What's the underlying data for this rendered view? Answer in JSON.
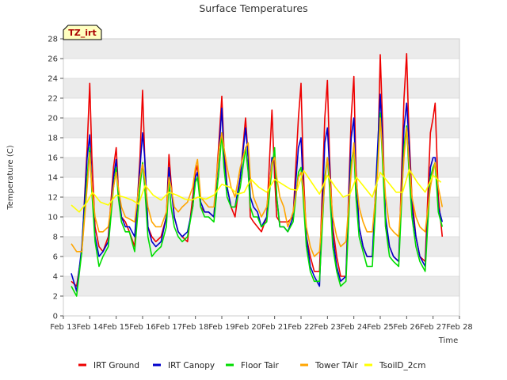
{
  "chart_data": {
    "type": "line",
    "title": "Surface Temperatures",
    "xlabel": "Time",
    "ylabel": "Temperature (C)",
    "badge": "TZ_irt",
    "ylim": [
      0,
      28
    ],
    "xlim": [
      13,
      28
    ],
    "grid": true,
    "legend_position": "bottom",
    "x_ticks": [
      {
        "v": 13,
        "label": "Feb 13"
      },
      {
        "v": 14,
        "label": "Feb 14"
      },
      {
        "v": 15,
        "label": "Feb 15"
      },
      {
        "v": 16,
        "label": "Feb 16"
      },
      {
        "v": 17,
        "label": "Feb 17"
      },
      {
        "v": 18,
        "label": "Feb 18"
      },
      {
        "v": 19,
        "label": "Feb 19"
      },
      {
        "v": 20,
        "label": "Feb 20"
      },
      {
        "v": 21,
        "label": "Feb 21"
      },
      {
        "v": 22,
        "label": "Feb 22"
      },
      {
        "v": 23,
        "label": "Feb 23"
      },
      {
        "v": 24,
        "label": "Feb 24"
      },
      {
        "v": 25,
        "label": "Feb 25"
      },
      {
        "v": 26,
        "label": "Feb 26"
      },
      {
        "v": 27,
        "label": "Feb 27"
      },
      {
        "v": 28,
        "label": "Feb 28"
      }
    ],
    "y_ticks": [
      0,
      2,
      4,
      6,
      8,
      10,
      12,
      14,
      16,
      18,
      20,
      22,
      24,
      26,
      28
    ],
    "series": [
      {
        "name": "IRT Ground",
        "color": "#ee0000",
        "x": [
          13.3,
          13.5,
          13.7,
          13.9,
          14.0,
          14.08,
          14.2,
          14.35,
          14.5,
          14.7,
          14.9,
          15.0,
          15.08,
          15.2,
          15.35,
          15.5,
          15.7,
          15.9,
          16.0,
          16.08,
          16.2,
          16.35,
          16.5,
          16.7,
          16.9,
          17.0,
          17.08,
          17.2,
          17.35,
          17.5,
          17.7,
          17.9,
          18.0,
          18.08,
          18.2,
          18.35,
          18.5,
          18.7,
          18.9,
          19.0,
          19.08,
          19.2,
          19.35,
          19.5,
          19.7,
          19.9,
          20.0,
          20.08,
          20.2,
          20.35,
          20.5,
          20.7,
          20.9,
          21.0,
          21.08,
          21.2,
          21.35,
          21.5,
          21.7,
          21.9,
          22.0,
          22.08,
          22.2,
          22.35,
          22.5,
          22.7,
          22.9,
          23.0,
          23.08,
          23.2,
          23.35,
          23.5,
          23.7,
          23.9,
          24.0,
          24.08,
          24.2,
          24.35,
          24.5,
          24.7,
          24.9,
          25.0,
          25.08,
          25.2,
          25.35,
          25.5,
          25.7,
          25.9,
          26.0,
          26.08,
          26.2,
          26.35,
          26.5,
          26.7,
          26.9,
          27.0,
          27.08,
          27.2,
          27.35
        ],
        "y": [
          3.5,
          3.0,
          6.5,
          17.0,
          23.5,
          16.0,
          9.0,
          7.0,
          6.5,
          8.0,
          15.0,
          17.0,
          13.0,
          10.0,
          9.5,
          8.5,
          7.0,
          16.0,
          22.8,
          16.0,
          9.0,
          8.0,
          7.5,
          8.0,
          10.0,
          16.3,
          13.5,
          10.0,
          8.5,
          8.0,
          7.5,
          12.0,
          14.5,
          15.2,
          11.0,
          10.5,
          10.5,
          10.0,
          18.0,
          22.2,
          17.0,
          13.0,
          11.0,
          10.0,
          14.0,
          20.0,
          16.0,
          10.0,
          9.5,
          9.0,
          8.5,
          10.0,
          20.8,
          14.0,
          10.0,
          9.5,
          9.5,
          9.5,
          10.0,
          20.0,
          23.5,
          15.0,
          8.0,
          6.0,
          4.5,
          4.5,
          20.0,
          23.8,
          16.0,
          9.0,
          6.0,
          4.0,
          4.0,
          20.0,
          24.2,
          15.0,
          9.0,
          7.0,
          6.0,
          6.0,
          15.0,
          26.4,
          20.0,
          9.0,
          7.0,
          6.0,
          5.5,
          22.0,
          26.5,
          19.0,
          12.0,
          8.0,
          6.0,
          5.5,
          18.5,
          20.0,
          21.5,
          12.0,
          8.0
        ]
      },
      {
        "name": "IRT Canopy",
        "color": "#0000cc",
        "x": [
          13.3,
          13.5,
          13.7,
          13.9,
          14.0,
          14.08,
          14.2,
          14.35,
          14.5,
          14.7,
          14.9,
          15.0,
          15.08,
          15.2,
          15.35,
          15.5,
          15.7,
          15.9,
          16.0,
          16.08,
          16.2,
          16.35,
          16.5,
          16.7,
          16.9,
          17.0,
          17.08,
          17.2,
          17.35,
          17.5,
          17.7,
          17.9,
          18.0,
          18.08,
          18.2,
          18.35,
          18.5,
          18.7,
          18.9,
          19.0,
          19.08,
          19.2,
          19.35,
          19.5,
          19.7,
          19.9,
          20.0,
          20.08,
          20.2,
          20.35,
          20.5,
          20.7,
          20.9,
          21.0,
          21.08,
          21.2,
          21.35,
          21.5,
          21.7,
          21.9,
          22.0,
          22.08,
          22.2,
          22.35,
          22.5,
          22.7,
          22.9,
          23.0,
          23.08,
          23.2,
          23.35,
          23.5,
          23.7,
          23.9,
          24.0,
          24.08,
          24.2,
          24.35,
          24.5,
          24.7,
          24.9,
          25.0,
          25.08,
          25.2,
          25.35,
          25.5,
          25.7,
          25.9,
          26.0,
          26.08,
          26.2,
          26.35,
          26.5,
          26.7,
          26.9,
          27.0,
          27.08,
          27.2,
          27.35
        ],
        "y": [
          4.3,
          2.5,
          7.0,
          16.0,
          18.3,
          13.0,
          8.0,
          6.0,
          6.5,
          7.5,
          14.0,
          15.8,
          12.5,
          10.0,
          9.0,
          9.0,
          8.0,
          15.0,
          18.5,
          16.0,
          9.0,
          7.5,
          7.0,
          7.5,
          10.0,
          15.0,
          13.0,
          10.0,
          8.5,
          8.0,
          8.5,
          11.0,
          14.0,
          14.5,
          11.5,
          10.5,
          10.5,
          10.0,
          17.0,
          21.0,
          16.0,
          13.0,
          11.0,
          11.0,
          14.0,
          19.0,
          16.0,
          12.0,
          11.0,
          10.5,
          9.0,
          10.0,
          16.0,
          16.0,
          12.0,
          9.0,
          9.0,
          8.5,
          10.0,
          17.0,
          18.0,
          13.0,
          8.0,
          5.0,
          4.0,
          3.0,
          17.5,
          19.0,
          15.0,
          8.0,
          5.0,
          3.5,
          4.0,
          18.0,
          20.0,
          14.0,
          9.0,
          7.0,
          6.0,
          6.0,
          17.0,
          22.4,
          18.0,
          10.0,
          7.0,
          6.0,
          5.5,
          19.0,
          21.5,
          18.0,
          11.0,
          8.0,
          6.0,
          5.0,
          15.0,
          16.0,
          16.0,
          11.0,
          9.5
        ]
      },
      {
        "name": "Floor Tair",
        "color": "#00dd00",
        "x": [
          13.3,
          13.5,
          13.7,
          13.9,
          14.0,
          14.08,
          14.2,
          14.35,
          14.5,
          14.7,
          14.9,
          15.0,
          15.08,
          15.2,
          15.35,
          15.5,
          15.7,
          15.9,
          16.0,
          16.08,
          16.2,
          16.35,
          16.5,
          16.7,
          16.9,
          17.0,
          17.08,
          17.2,
          17.35,
          17.5,
          17.7,
          17.9,
          18.0,
          18.08,
          18.2,
          18.35,
          18.5,
          18.7,
          18.9,
          19.0,
          19.08,
          19.2,
          19.35,
          19.5,
          19.7,
          19.9,
          20.0,
          20.08,
          20.2,
          20.35,
          20.5,
          20.7,
          20.9,
          21.0,
          21.08,
          21.2,
          21.35,
          21.5,
          21.7,
          21.9,
          22.0,
          22.08,
          22.2,
          22.35,
          22.5,
          22.7,
          22.9,
          23.0,
          23.08,
          23.2,
          23.35,
          23.5,
          23.7,
          23.9,
          24.0,
          24.08,
          24.2,
          24.35,
          24.5,
          24.7,
          24.9,
          25.0,
          25.08,
          25.2,
          25.35,
          25.5,
          25.7,
          25.9,
          26.0,
          26.08,
          26.2,
          26.35,
          26.5,
          26.7,
          26.9,
          27.0,
          27.08,
          27.2,
          27.35
        ],
        "y": [
          3.0,
          2.0,
          6.5,
          14.0,
          17.0,
          12.5,
          7.5,
          5.0,
          6.0,
          7.0,
          13.0,
          15.0,
          12.0,
          9.5,
          8.5,
          8.5,
          6.5,
          13.0,
          15.5,
          13.0,
          8.0,
          6.0,
          6.5,
          7.0,
          9.0,
          13.5,
          11.0,
          9.0,
          8.0,
          7.5,
          8.0,
          11.0,
          13.5,
          14.0,
          11.0,
          10.0,
          10.0,
          9.5,
          15.0,
          18.5,
          15.0,
          12.0,
          11.0,
          11.0,
          13.0,
          17.0,
          14.5,
          11.0,
          10.0,
          10.0,
          9.0,
          9.5,
          15.0,
          17.0,
          12.0,
          9.0,
          9.0,
          8.5,
          9.5,
          14.5,
          15.0,
          12.0,
          7.0,
          4.5,
          3.5,
          3.5,
          14.0,
          16.0,
          13.0,
          7.0,
          4.5,
          3.0,
          3.5,
          15.5,
          17.0,
          12.0,
          8.0,
          6.5,
          5.0,
          5.0,
          15.0,
          20.5,
          16.0,
          9.0,
          6.0,
          5.5,
          5.0,
          17.0,
          19.2,
          15.0,
          10.0,
          7.0,
          5.5,
          4.5,
          14.0,
          15.0,
          15.5,
          10.5,
          9.0
        ]
      },
      {
        "name": "Tower TAir",
        "color": "#ffa500",
        "x": [
          13.3,
          13.5,
          13.7,
          13.9,
          14.0,
          14.08,
          14.2,
          14.35,
          14.5,
          14.7,
          14.9,
          15.0,
          15.08,
          15.2,
          15.35,
          15.5,
          15.7,
          15.9,
          16.0,
          16.08,
          16.2,
          16.35,
          16.5,
          16.7,
          16.9,
          17.0,
          17.08,
          17.2,
          17.35,
          17.5,
          17.7,
          17.9,
          18.0,
          18.08,
          18.2,
          18.35,
          18.5,
          18.7,
          18.9,
          19.0,
          19.08,
          19.2,
          19.35,
          19.5,
          19.7,
          19.9,
          20.0,
          20.08,
          20.2,
          20.35,
          20.5,
          20.7,
          20.9,
          21.0,
          21.08,
          21.2,
          21.35,
          21.5,
          21.7,
          21.9,
          22.0,
          22.08,
          22.2,
          22.35,
          22.5,
          22.7,
          22.9,
          23.0,
          23.08,
          23.2,
          23.35,
          23.5,
          23.7,
          23.9,
          24.0,
          24.08,
          24.2,
          24.35,
          24.5,
          24.7,
          24.9,
          25.0,
          25.08,
          25.2,
          25.35,
          25.5,
          25.7,
          25.9,
          26.0,
          26.08,
          26.2,
          26.35,
          26.5,
          26.7,
          26.9,
          27.0,
          27.08,
          27.2,
          27.35
        ],
        "y": [
          7.3,
          6.5,
          6.5,
          13.0,
          16.5,
          13.0,
          10.0,
          8.5,
          8.5,
          9.0,
          13.0,
          14.5,
          13.0,
          11.0,
          10.0,
          9.8,
          9.5,
          14.0,
          15.3,
          14.0,
          11.0,
          9.5,
          9.0,
          9.0,
          10.5,
          14.0,
          13.0,
          11.0,
          10.5,
          11.0,
          11.5,
          13.0,
          15.0,
          15.8,
          12.0,
          11.5,
          11.0,
          11.0,
          17.0,
          18.5,
          17.0,
          15.0,
          13.0,
          12.0,
          15.0,
          17.0,
          17.5,
          14.0,
          12.0,
          11.0,
          10.0,
          11.0,
          15.5,
          16.0,
          14.0,
          12.0,
          11.0,
          9.0,
          10.5,
          14.0,
          14.5,
          13.0,
          9.0,
          7.0,
          6.0,
          6.5,
          13.5,
          16.0,
          14.0,
          10.0,
          8.0,
          7.0,
          7.5,
          14.5,
          17.5,
          14.0,
          11.0,
          9.5,
          8.5,
          8.5,
          14.5,
          20.0,
          17.0,
          12.0,
          9.0,
          8.5,
          8.0,
          16.0,
          19.0,
          16.0,
          12.0,
          10.0,
          9.0,
          8.5,
          13.0,
          14.5,
          15.5,
          13.0,
          11.0
        ]
      },
      {
        "name": "TsoilD_2cm",
        "color": "#ffff00",
        "x": [
          13.3,
          13.6,
          13.9,
          14.1,
          14.4,
          14.7,
          15.0,
          15.3,
          15.6,
          15.85,
          16.1,
          16.4,
          16.7,
          17.0,
          17.3,
          17.6,
          17.85,
          18.1,
          18.4,
          18.7,
          19.0,
          19.3,
          19.6,
          19.85,
          20.1,
          20.4,
          20.7,
          21.0,
          21.3,
          21.6,
          21.85,
          22.1,
          22.4,
          22.7,
          23.0,
          23.3,
          23.6,
          23.85,
          24.1,
          24.4,
          24.7,
          25.0,
          25.3,
          25.6,
          25.85,
          26.1,
          26.4,
          26.7,
          27.0,
          27.3
        ],
        "y": [
          11.2,
          10.5,
          11.5,
          12.5,
          11.5,
          11.2,
          12.2,
          12.0,
          11.7,
          11.3,
          13.2,
          12.2,
          11.7,
          12.5,
          12.2,
          11.8,
          11.7,
          12.0,
          11.8,
          12.2,
          13.3,
          13.0,
          12.3,
          12.5,
          13.8,
          13.0,
          12.5,
          13.8,
          13.3,
          12.8,
          12.7,
          14.7,
          13.5,
          12.3,
          14.2,
          13.0,
          12.0,
          12.3,
          14.0,
          13.0,
          12.0,
          14.5,
          13.5,
          12.5,
          12.5,
          14.8,
          13.5,
          12.5,
          14.2,
          13.5
        ]
      }
    ]
  }
}
